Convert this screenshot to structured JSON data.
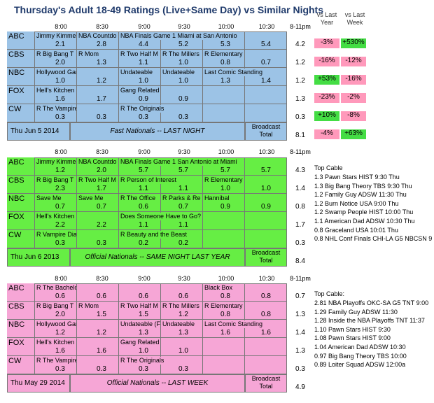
{
  "title": "Thursday's Adult 18-49 Ratings (Live+Same Day) vs Similar Nights",
  "col_headers": [
    "8:00",
    "8:30",
    "9:00",
    "9:30",
    "10:00",
    "10:30",
    "8-11pm"
  ],
  "cmp_headers": {
    "vs_last_year": "vs Last Year",
    "vs_last_week": "vs Last Week"
  },
  "colors": {
    "blue": "#9cc3e6",
    "green": "#66ee44",
    "pink": "#f6a6d6",
    "green_cell": "#44dd44",
    "red_cell": "#ff99bb",
    "blue_dark": "#6fa7d9"
  },
  "sections": [
    {
      "id": "thu-2014",
      "bg": "#9cc3e6",
      "rows": [
        {
          "net": "ABC",
          "shows": [
            "Jimmy Kimme",
            "NBA Countdo",
            "NBA Finals Game 1 Miami at San Antonio",
            "",
            "",
            ""
          ],
          "vals": [
            "2.1",
            "2.8",
            "4.4",
            "5.2",
            "5.3",
            "5.4"
          ],
          "total": "4.2",
          "yr": "-3%",
          "wk": "+530%",
          "yr_c": "r",
          "wk_c": "g"
        },
        {
          "net": "CBS",
          "shows": [
            "R Big Bang T",
            "R Mom",
            "R Two Half M",
            "R The Millers",
            "R Elementary",
            ""
          ],
          "vals": [
            "2.0",
            "1.3",
            "1.1",
            "1.0",
            "0.8",
            "0.7"
          ],
          "total": "1.2",
          "yr": "-16%",
          "wk": "-12%",
          "yr_c": "r",
          "wk_c": "r"
        },
        {
          "net": "NBC",
          "shows": [
            "Hollywood Game Night",
            "",
            "Undateable",
            "Undateable",
            "Last Comic Standing",
            ""
          ],
          "vals": [
            "1.0",
            "1.2",
            "1.0",
            "1.0",
            "1.3",
            "1.4"
          ],
          "total": "1.2",
          "yr": "+53%",
          "wk": "-16%",
          "yr_c": "g",
          "wk_c": "r"
        },
        {
          "net": "FOX",
          "shows": [
            "Hell's Kitchen",
            "",
            "Gang Related",
            "",
            "",
            ""
          ],
          "vals": [
            "1.6",
            "1.7",
            "0.9",
            "0.9",
            "",
            ""
          ],
          "total": "1.3",
          "yr": "-23%",
          "wk": "-2%",
          "yr_c": "r",
          "wk_c": "r"
        },
        {
          "net": "CW",
          "shows": [
            "R The Vampire Diaries",
            "",
            "R The Originals",
            "",
            "",
            ""
          ],
          "vals": [
            "0.3",
            "0.3",
            "0.3",
            "0.3",
            "",
            ""
          ],
          "total": "0.3",
          "yr": "+10%",
          "wk": "-8%",
          "yr_c": "g",
          "wk_c": "r"
        }
      ],
      "footer": {
        "date": "Thu Jun 5 2014",
        "note": "Fast Nationals -- LAST NIGHT",
        "bcast": "Broadcast Total",
        "total": "8.1",
        "yr": "-4%",
        "wk": "+63%",
        "yr_c": "r",
        "wk_c": "g"
      }
    },
    {
      "id": "thu-2013",
      "bg": "#66ee44",
      "rows": [
        {
          "net": "ABC",
          "shows": [
            "Jimmy Kimme",
            "NBA Countdo",
            "NBA Finals Game 1 San Antonio at Miami",
            "",
            "",
            ""
          ],
          "vals": [
            "1.2",
            "2.0",
            "5.7",
            "5.7",
            "5.7",
            "5.7"
          ],
          "total": "4.3"
        },
        {
          "net": "CBS",
          "shows": [
            "R Big Bang T",
            "R Two Half M",
            "R Person of Interest",
            "",
            "R Elementary",
            ""
          ],
          "vals": [
            "2.3",
            "1.7",
            "1.1",
            "1.1",
            "1.0",
            "1.0"
          ],
          "total": "1.4"
        },
        {
          "net": "NBC",
          "shows": [
            "Save Me",
            "Save Me",
            "R The Office",
            "R Parks & Re",
            "Hannibal",
            ""
          ],
          "vals": [
            "0.7",
            "0.7",
            "0.6",
            "0.7",
            "0.9",
            "0.9"
          ],
          "total": "0.8"
        },
        {
          "net": "FOX",
          "shows": [
            "Hell's Kitchen",
            "",
            "Does Someone Have to Go?",
            "",
            "",
            ""
          ],
          "vals": [
            "2.2",
            "2.2",
            "1.1",
            "1.1",
            "",
            ""
          ],
          "total": "1.7"
        },
        {
          "net": "CW",
          "shows": [
            "R Vampire Diaries",
            "",
            "R Beauty and the Beast",
            "",
            "",
            ""
          ],
          "vals": [
            "0.3",
            "0.3",
            "0.2",
            "0.2",
            "",
            ""
          ],
          "total": "0.3"
        }
      ],
      "footer": {
        "date": "Thu Jun 6 2013",
        "note": "Official Nationals -- SAME NIGHT LAST YEAR",
        "bcast": "Broadcast Total",
        "total": "8.4"
      },
      "side_title": "Top Cable",
      "side": [
        "1.3 Pawn Stars HIST 9:30 Thu",
        "1.3 Big Bang Theory TBS 9:30 Thu",
        "1.2 Family Guy ADSW 11:30 Thu",
        "1.2 Burn Notice USA 9:00 Thu",
        "1.2 Swamp People HIST 10:00 Thu",
        "1.1 American Dad ADSW 10:30 Thu",
        "0.8 Graceland USA 10:01 Thu",
        "0.8 NHL Conf Finals CHI-LA G5 NBCSN 9"
      ]
    },
    {
      "id": "thu-lastweek",
      "bg": "#f6a6d6",
      "rows": [
        {
          "net": "ABC",
          "shows": [
            "R The Bachelorette",
            "",
            "",
            "",
            "Black Box",
            ""
          ],
          "vals": [
            "0.6",
            "0.6",
            "0.6",
            "0.6",
            "0.8",
            "0.8"
          ],
          "total": "0.7"
        },
        {
          "net": "CBS",
          "shows": [
            "R Big Bang T",
            "R Mom",
            "R Two Half M",
            "R The Millers",
            "R Elementary",
            ""
          ],
          "vals": [
            "2.0",
            "1.5",
            "1.5",
            "1.2",
            "0.8",
            "0.8"
          ],
          "total": "1.3"
        },
        {
          "net": "NBC",
          "shows": [
            "Hollywood Game Night",
            "",
            "Undateable (F",
            "Undateable",
            "Last Comic Standing",
            ""
          ],
          "vals": [
            "1.2",
            "1.2",
            "1.3",
            "1.3",
            "1.6",
            "1.6"
          ],
          "total": "1.4"
        },
        {
          "net": "FOX",
          "shows": [
            "Hell's Kitchen",
            "",
            "Gang Related",
            "",
            "",
            ""
          ],
          "vals": [
            "1.6",
            "1.6",
            "1.0",
            "1.0",
            "",
            ""
          ],
          "total": "1.3"
        },
        {
          "net": "CW",
          "shows": [
            "R The Vampire Diaries",
            "",
            "R The Originals",
            "",
            "",
            ""
          ],
          "vals": [
            "0.3",
            "0.3",
            "0.3",
            "0.3",
            "",
            ""
          ],
          "total": "0.3"
        }
      ],
      "footer": {
        "date": "Thu May 29 2014",
        "note": "Official Nationals -- LAST WEEK",
        "bcast": "Broadcast Total",
        "total": "4.9"
      },
      "side_title": "Top Cable:",
      "side": [
        "2.81 NBA Playoffs OKC-SA G5 TNT 9:00",
        "1.29 Family Guy ADSW 11:30",
        "1.28 Inside the NBA Playoffs TNT 11:37",
        "1.10 Pawn Stars HIST 9:30",
        "1.08 Pawn Stars HIST 9:00",
        "1.04 American Dad ADSW 10:30",
        "0.97 Big Bang Theory TBS 10:00",
        "0.89 Loiter Squad ADSW 12:00a"
      ]
    }
  ]
}
